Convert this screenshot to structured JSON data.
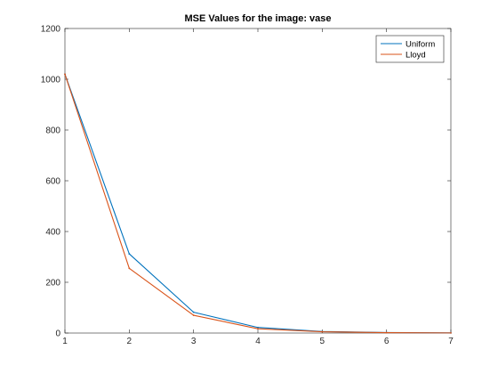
{
  "chart_data": {
    "type": "line",
    "title": "MSE Values for the image: vase",
    "xlabel": "",
    "ylabel": "",
    "x": [
      1,
      2,
      3,
      4,
      5,
      6,
      7
    ],
    "xlim": [
      1,
      7
    ],
    "ylim": [
      0,
      1200
    ],
    "xticks": [
      1,
      2,
      3,
      4,
      5,
      6,
      7
    ],
    "yticks": [
      0,
      200,
      400,
      600,
      800,
      1000,
      1200
    ],
    "grid": false,
    "legend_position": "top-right",
    "series": [
      {
        "name": "Uniform",
        "color": "#0072BD",
        "values": [
          1020,
          312,
          82,
          22,
          6,
          2,
          0.5
        ]
      },
      {
        "name": "Lloyd",
        "color": "#D95319",
        "values": [
          1020,
          255,
          70,
          17,
          5,
          1.5,
          0.4
        ]
      }
    ]
  }
}
